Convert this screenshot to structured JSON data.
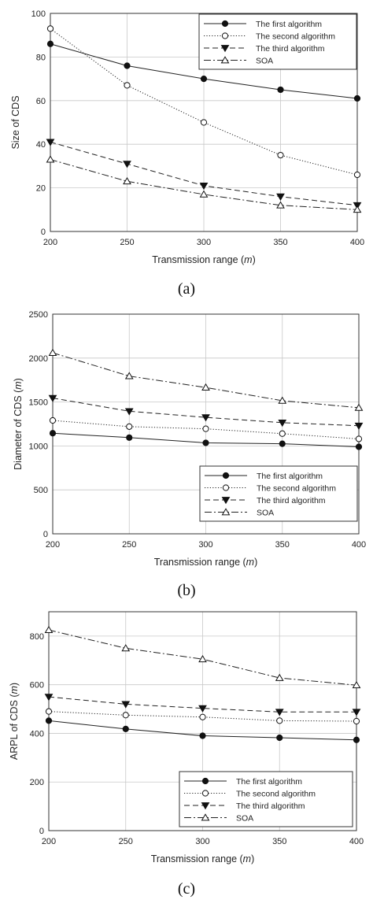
{
  "chart_data": [
    {
      "type": "line",
      "caption": "(a)",
      "xlabel": "Transmission range (m)",
      "xlabel_prefix": "Transmission range (",
      "xlabel_unit": "m",
      "xlabel_suffix": ")",
      "ylabel": "Size of CDS",
      "ylabel_prefix": "Size of CDS",
      "ylabel_unit": "",
      "ylabel_suffix": "",
      "x": [
        200,
        250,
        300,
        350,
        400
      ],
      "xlim": [
        200,
        400
      ],
      "ylim": [
        0,
        100
      ],
      "yticks": [
        0,
        20,
        40,
        60,
        80,
        100
      ],
      "grid": true,
      "legend_position": "top-right",
      "series": [
        {
          "name": "The first algorithm",
          "values": [
            86,
            76,
            70,
            65,
            61
          ],
          "dash": "solid",
          "marker": "circle-filled"
        },
        {
          "name": "The second algorithm",
          "values": [
            93,
            67,
            50,
            35,
            26
          ],
          "dash": "dotted",
          "marker": "circle-open"
        },
        {
          "name": "The third algorithm",
          "values": [
            41,
            31,
            21,
            16,
            12
          ],
          "dash": "dashed",
          "marker": "triangle-down-filled"
        },
        {
          "name": "SOA",
          "values": [
            33,
            23,
            17,
            12,
            10
          ],
          "dash": "dashdot",
          "marker": "triangle-up-open"
        }
      ]
    },
    {
      "type": "line",
      "caption": "(b)",
      "xlabel": "Transmission range (m)",
      "xlabel_prefix": "Transmission range (",
      "xlabel_unit": "m",
      "xlabel_suffix": ")",
      "ylabel": "Diameter of CDS (m)",
      "ylabel_prefix": "Diameter of CDS (",
      "ylabel_unit": "m",
      "ylabel_suffix": ")",
      "x": [
        200,
        250,
        300,
        350,
        400
      ],
      "xlim": [
        200,
        400
      ],
      "ylim": [
        0,
        2500
      ],
      "yticks": [
        0,
        500,
        1000,
        1500,
        2000,
        2500
      ],
      "grid": true,
      "legend_position": "bottom-right",
      "series": [
        {
          "name": "The first algorithm",
          "values": [
            1145,
            1095,
            1035,
            1025,
            990
          ],
          "dash": "solid",
          "marker": "circle-filled"
        },
        {
          "name": "The second algorithm",
          "values": [
            1290,
            1220,
            1195,
            1140,
            1080
          ],
          "dash": "dotted",
          "marker": "circle-open"
        },
        {
          "name": "The third algorithm",
          "values": [
            1545,
            1395,
            1325,
            1265,
            1230
          ],
          "dash": "dashed",
          "marker": "triangle-down-filled"
        },
        {
          "name": "SOA",
          "values": [
            2060,
            1795,
            1665,
            1515,
            1435
          ],
          "dash": "dashdot",
          "marker": "triangle-up-open"
        }
      ]
    },
    {
      "type": "line",
      "caption": "(c)",
      "xlabel": "Transmission range (m)",
      "xlabel_prefix": "Transmission range (",
      "xlabel_unit": "m",
      "xlabel_suffix": ")",
      "ylabel": "ARPL of CDS (m)",
      "ylabel_prefix": "ARPL of CDS (",
      "ylabel_unit": "m",
      "ylabel_suffix": ")",
      "x": [
        200,
        250,
        300,
        350,
        400
      ],
      "xlim": [
        200,
        400
      ],
      "ylim": [
        0,
        900
      ],
      "yticks": [
        0,
        200,
        400,
        600,
        800
      ],
      "grid": true,
      "legend_position": "bottom-right",
      "series": [
        {
          "name": "The first algorithm",
          "values": [
            452,
            418,
            390,
            382,
            373
          ],
          "dash": "solid",
          "marker": "circle-filled"
        },
        {
          "name": "The second algorithm",
          "values": [
            490,
            475,
            467,
            452,
            450
          ],
          "dash": "dotted",
          "marker": "circle-open"
        },
        {
          "name": "The third algorithm",
          "values": [
            550,
            520,
            503,
            488,
            488
          ],
          "dash": "dashed",
          "marker": "triangle-down-filled"
        },
        {
          "name": "SOA",
          "values": [
            825,
            750,
            705,
            628,
            598
          ],
          "dash": "dashdot",
          "marker": "triangle-up-open"
        }
      ]
    }
  ]
}
